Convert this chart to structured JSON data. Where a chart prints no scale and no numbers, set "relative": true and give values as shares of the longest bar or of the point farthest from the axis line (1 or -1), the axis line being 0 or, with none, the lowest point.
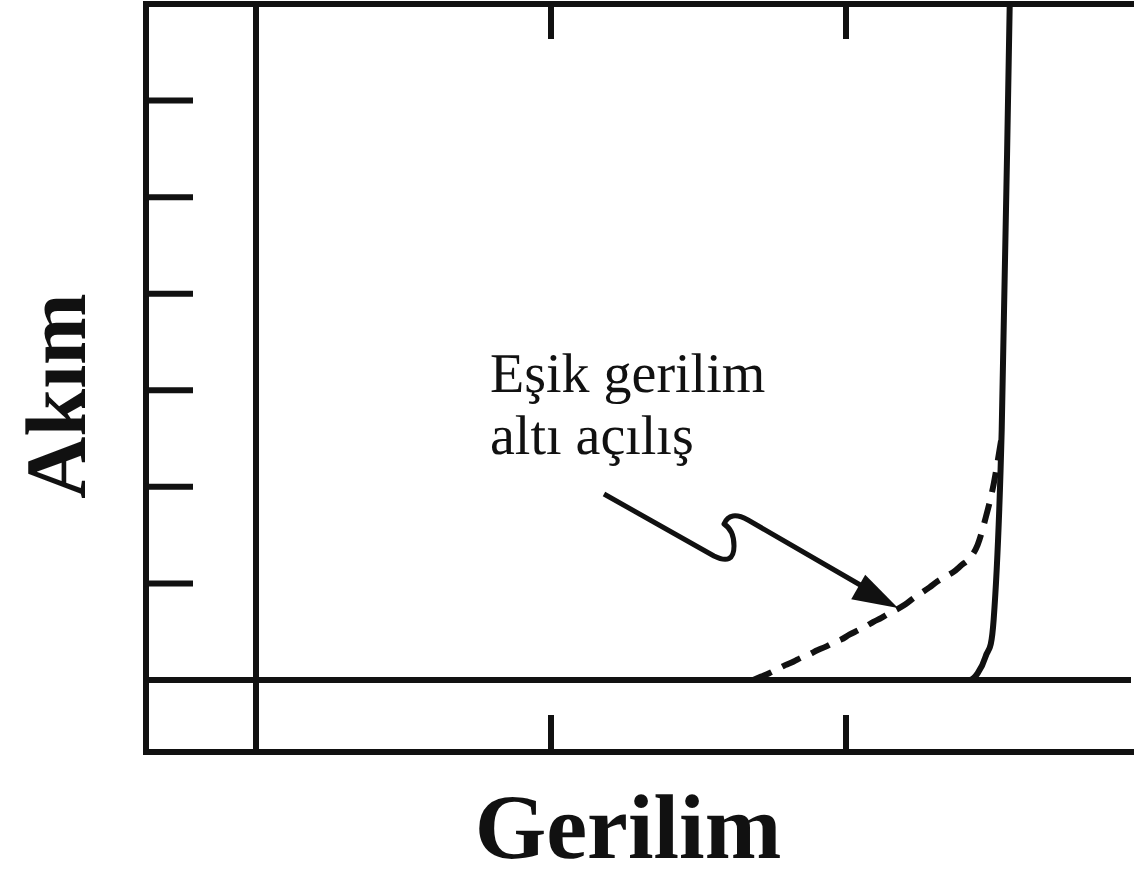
{
  "chart_data": {
    "type": "line",
    "xlabel": "Gerilim",
    "ylabel": "Akım",
    "annotations": [
      "Eşik gerilim altı açılış"
    ],
    "relative": true,
    "marker": "none",
    "categories": [
      null,
      null,
      null,
      null,
      null,
      null,
      null,
      null,
      null,
      null,
      null,
      null,
      null,
      null,
      null,
      null,
      null,
      null,
      null,
      null,
      null,
      null,
      null,
      null,
      null,
      null,
      null,
      null,
      null,
      null,
      null,
      null,
      null,
      null,
      null,
      null,
      null,
      null,
      null,
      null,
      null,
      null,
      null,
      null,
      null,
      null,
      null,
      null,
      null,
      null,
      null,
      null,
      null,
      null,
      null,
      null,
      null,
      null,
      null,
      null,
      null,
      null,
      null,
      null,
      null,
      null,
      null,
      null,
      null,
      null,
      null,
      null,
      null,
      null,
      null,
      null,
      null,
      null,
      null,
      null,
      null,
      null,
      null,
      null,
      null,
      null,
      null,
      null,
      null,
      null,
      null,
      null,
      null,
      null,
      null,
      null,
      null,
      null,
      null,
      null,
      null,
      null,
      null,
      null,
      null,
      null,
      null,
      null,
      null,
      null
    ],
    "series": [
      {
        "color": "#111111",
        "line_style": "solid",
        "values": [
          0,
          0,
          0,
          0,
          0,
          0,
          0,
          0,
          0,
          0,
          0,
          0,
          0,
          0,
          0,
          0,
          0,
          0,
          0,
          0,
          0,
          0,
          0,
          0,
          0,
          0,
          0,
          0,
          0,
          0,
          0,
          0,
          0,
          0,
          0,
          0,
          0,
          0,
          0,
          0,
          0,
          0,
          0,
          0,
          0,
          0,
          0,
          0,
          0,
          0,
          0,
          0,
          0,
          0,
          0,
          0,
          0,
          0,
          0,
          0,
          0,
          0,
          0,
          0,
          0,
          0,
          0,
          0,
          0,
          0,
          0,
          0,
          0,
          0,
          0,
          0,
          0,
          0,
          0,
          0,
          0,
          0,
          0,
          0,
          0,
          0,
          0,
          0,
          0,
          0,
          0.01,
          0.035,
          0.09,
          0.37,
          1,
          null,
          null,
          null,
          null,
          null,
          null,
          null,
          null,
          null,
          null,
          null,
          null,
          null,
          null,
          null
        ]
      },
      {
        "color": "#111111",
        "line_style": "dashed",
        "values": [
          null,
          null,
          null,
          null,
          null,
          null,
          null,
          null,
          null,
          null,
          null,
          null,
          null,
          null,
          null,
          null,
          null,
          null,
          null,
          null,
          null,
          null,
          null,
          null,
          null,
          null,
          null,
          null,
          null,
          null,
          null,
          null,
          null,
          null,
          null,
          null,
          null,
          null,
          null,
          null,
          null,
          null,
          null,
          null,
          null,
          null,
          null,
          null,
          null,
          null,
          null,
          null,
          null,
          null,
          null,
          null,
          null,
          null,
          null,
          null,
          null,
          null,
          0,
          0.005,
          0.01,
          0.016,
          0.022,
          0.027,
          0.033,
          0.038,
          0.044,
          0.049,
          0.055,
          0.06,
          0.067,
          0.073,
          0.079,
          0.086,
          0.092,
          0.099,
          0.105,
          0.112,
          0.121,
          0.129,
          0.137,
          0.146,
          0.153,
          0.16,
          0.17,
          0.18,
          0.2,
          0.24,
          0.29,
          0.36,
          null,
          null,
          null,
          null,
          null,
          null,
          null,
          null,
          null,
          null,
          null,
          null,
          null,
          null,
          null,
          null
        ]
      }
    ]
  }
}
